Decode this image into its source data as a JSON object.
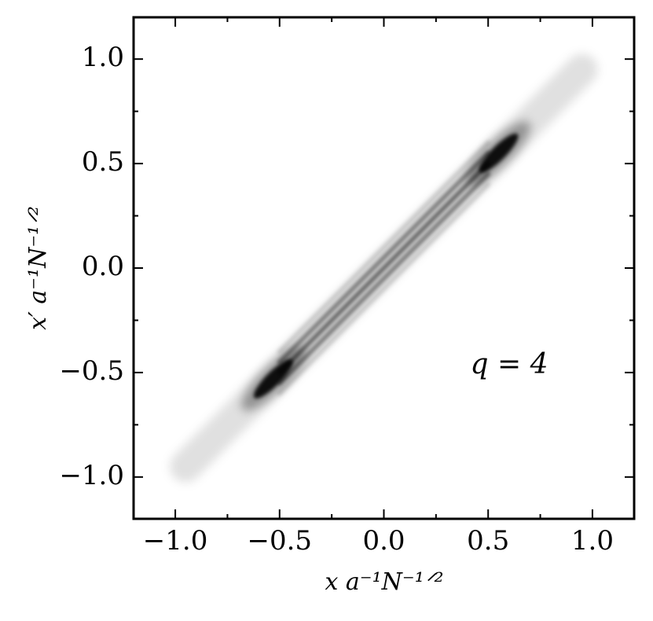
{
  "chart_data": {
    "type": "density",
    "xlabel": "x a⁻¹N⁻¹ᐟ²",
    "ylabel": "x′ a⁻¹N⁻¹ᐟ²",
    "annotation": "q = 4",
    "xlim": [
      -1.2,
      1.2
    ],
    "ylim": [
      -1.2,
      1.2
    ],
    "xticks": [
      {
        "value": -1,
        "label": "−1.0"
      },
      {
        "value": -0.5,
        "label": "−0.5"
      },
      {
        "value": 0,
        "label": "0.0"
      },
      0.5,
      {
        "value": 1,
        "label": "1.0"
      }
    ],
    "yticks": [
      {
        "value": -1,
        "label": "−1.0"
      },
      {
        "value": -0.5,
        "label": "−0.5"
      },
      {
        "value": 0,
        "label": "0.0"
      },
      0.5,
      {
        "value": 1,
        "label": "1.0"
      }
    ],
    "xminorticks": [
      -0.75,
      -0.25,
      0.25,
      0.75
    ],
    "yminorticks": [
      -0.75,
      -0.25,
      0.25,
      0.75
    ],
    "color": "#000000",
    "blobs": [
      {
        "x": -0.53,
        "y": -0.53,
        "intensity": 1
      },
      {
        "x": 0.55,
        "y": 0.55,
        "intensity": 1
      }
    ],
    "fringes": [
      {
        "offset": -0.1,
        "intensity": 0.15
      },
      {
        "offset": -0.05,
        "intensity": 0.45
      },
      {
        "offset": 0,
        "intensity": 0.55
      },
      {
        "offset": 0.05,
        "intensity": 0.45
      },
      {
        "offset": 0.1,
        "intensity": 0.15
      }
    ],
    "band": {
      "from": -0.95,
      "to": 0.95,
      "intensity": 0.12
    }
  }
}
